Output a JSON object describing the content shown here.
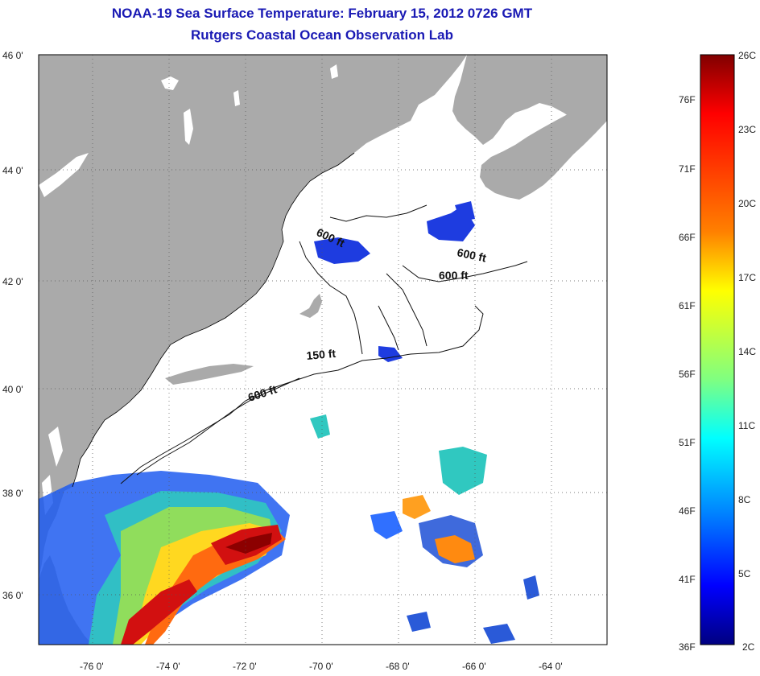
{
  "title": {
    "line1": "NOAA-19 Sea Surface Temperature:  February 15, 2012 0726 GMT",
    "line2": "Rutgers Coastal Ocean Observation Lab"
  },
  "axes": {
    "lat_ticks": [
      "46 0'",
      "44 0'",
      "42 0'",
      "40 0'",
      "38 0'",
      "36 0'"
    ],
    "lon_ticks": [
      "-76 0'",
      "-74 0'",
      "-72 0'",
      "-70 0'",
      "-68 0'",
      "-66 0'",
      "-64 0'"
    ]
  },
  "contours": [
    {
      "label": "600 ft"
    },
    {
      "label": "600 ft"
    },
    {
      "label": "600 ft"
    },
    {
      "label": "150 ft"
    },
    {
      "label": "600 ft"
    }
  ],
  "colorbar": {
    "fahrenheit": [
      "76F",
      "71F",
      "66F",
      "61F",
      "56F",
      "51F",
      "46F",
      "41F",
      "36F"
    ],
    "celsius": [
      "26C",
      "23C",
      "20C",
      "17C",
      "14C",
      "11C",
      "8C",
      "5C",
      "2C"
    ],
    "gradient": [
      "#800000",
      "#ff0000",
      "#ff8000",
      "#ffff00",
      "#80ff80",
      "#00ffff",
      "#0080ff",
      "#0000ff",
      "#000080"
    ]
  },
  "colors": {
    "land": "#aaaaaa",
    "water_cloud": "#ffffff",
    "title": "#1a1ab4"
  }
}
